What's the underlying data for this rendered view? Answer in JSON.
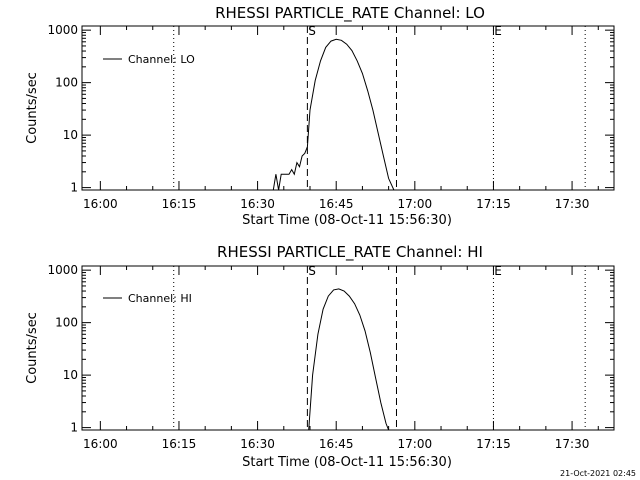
{
  "timestamp": "21-Oct-2021 02:45",
  "chart_data": [
    {
      "type": "line",
      "title": "RHESSI PARTICLE_RATE Channel: LO",
      "xlabel": "Start Time (08-Oct-11 15:56:30)",
      "ylabel": "Counts/sec",
      "yscale": "log",
      "xlim": [
        "15:56:30",
        "17:38:00"
      ],
      "ylim": [
        0.9,
        1200
      ],
      "x_ticks": [
        "16:00",
        "16:15",
        "16:30",
        "16:45",
        "17:00",
        "17:15",
        "17:30"
      ],
      "y_ticks": [
        "1",
        "10",
        "100",
        "1000"
      ],
      "legend": {
        "position": "top-left",
        "entries": [
          "Channel: LO"
        ]
      },
      "markers": {
        "dotted": [
          "16:14:00",
          "17:15:00",
          "17:32:30"
        ],
        "dashed": [
          "16:39:30",
          "16:56:30"
        ],
        "labels": [
          {
            "text": "S",
            "x": "16:40:00"
          },
          {
            "text": "E",
            "x": "17:15:30"
          }
        ]
      },
      "series": [
        {
          "name": "Channel: LO",
          "color": "#000000",
          "x": [
            "16:33:00",
            "16:33:30",
            "16:34:00",
            "16:34:30",
            "16:35:00",
            "16:35:30",
            "16:36:00",
            "16:36:30",
            "16:37:00",
            "16:37:30",
            "16:38:00",
            "16:38:30",
            "16:39:00",
            "16:39:30",
            "16:40:00",
            "16:41:00",
            "16:42:00",
            "16:43:00",
            "16:44:00",
            "16:45:00",
            "16:46:00",
            "16:47:00",
            "16:48:00",
            "16:49:00",
            "16:50:00",
            "16:51:00",
            "16:52:00",
            "16:53:00",
            "16:54:00",
            "16:55:00",
            "16:56:00"
          ],
          "y": [
            0.9,
            1.8,
            0.9,
            1.8,
            1.8,
            1.8,
            1.8,
            2.2,
            1.8,
            3.0,
            2.5,
            4.0,
            4.5,
            6.0,
            30,
            110,
            260,
            470,
            620,
            670,
            640,
            540,
            410,
            260,
            150,
            70,
            30,
            11,
            4,
            1.5,
            0.9
          ]
        }
      ]
    },
    {
      "type": "line",
      "title": "RHESSI PARTICLE_RATE Channel: HI",
      "xlabel": "Start Time (08-Oct-11 15:56:30)",
      "ylabel": "Counts/sec",
      "yscale": "log",
      "xlim": [
        "15:56:30",
        "17:38:00"
      ],
      "ylim": [
        0.9,
        1200
      ],
      "x_ticks": [
        "16:00",
        "16:15",
        "16:30",
        "16:45",
        "17:00",
        "17:15",
        "17:30"
      ],
      "y_ticks": [
        "1",
        "10",
        "100",
        "1000"
      ],
      "legend": {
        "position": "top-left",
        "entries": [
          "Channel: HI"
        ]
      },
      "markers": {
        "dotted": [
          "16:14:00",
          "17:15:00",
          "17:32:30"
        ],
        "dashed": [
          "16:39:30",
          "16:56:30"
        ],
        "labels": [
          {
            "text": "S",
            "x": "16:40:00"
          },
          {
            "text": "E",
            "x": "17:15:30"
          }
        ]
      },
      "series": [
        {
          "name": "Channel: HI",
          "color": "#000000",
          "x": [
            "16:39:45",
            "16:40:30",
            "16:41:30",
            "16:42:30",
            "16:43:30",
            "16:44:30",
            "16:45:30",
            "16:46:30",
            "16:47:30",
            "16:48:30",
            "16:49:30",
            "16:50:30",
            "16:51:30",
            "16:52:30",
            "16:53:30",
            "16:54:30",
            "16:55:00"
          ],
          "y": [
            0.9,
            10,
            60,
            180,
            320,
            420,
            440,
            400,
            320,
            230,
            140,
            70,
            27,
            9,
            3,
            1.2,
            0.9
          ]
        }
      ]
    }
  ]
}
